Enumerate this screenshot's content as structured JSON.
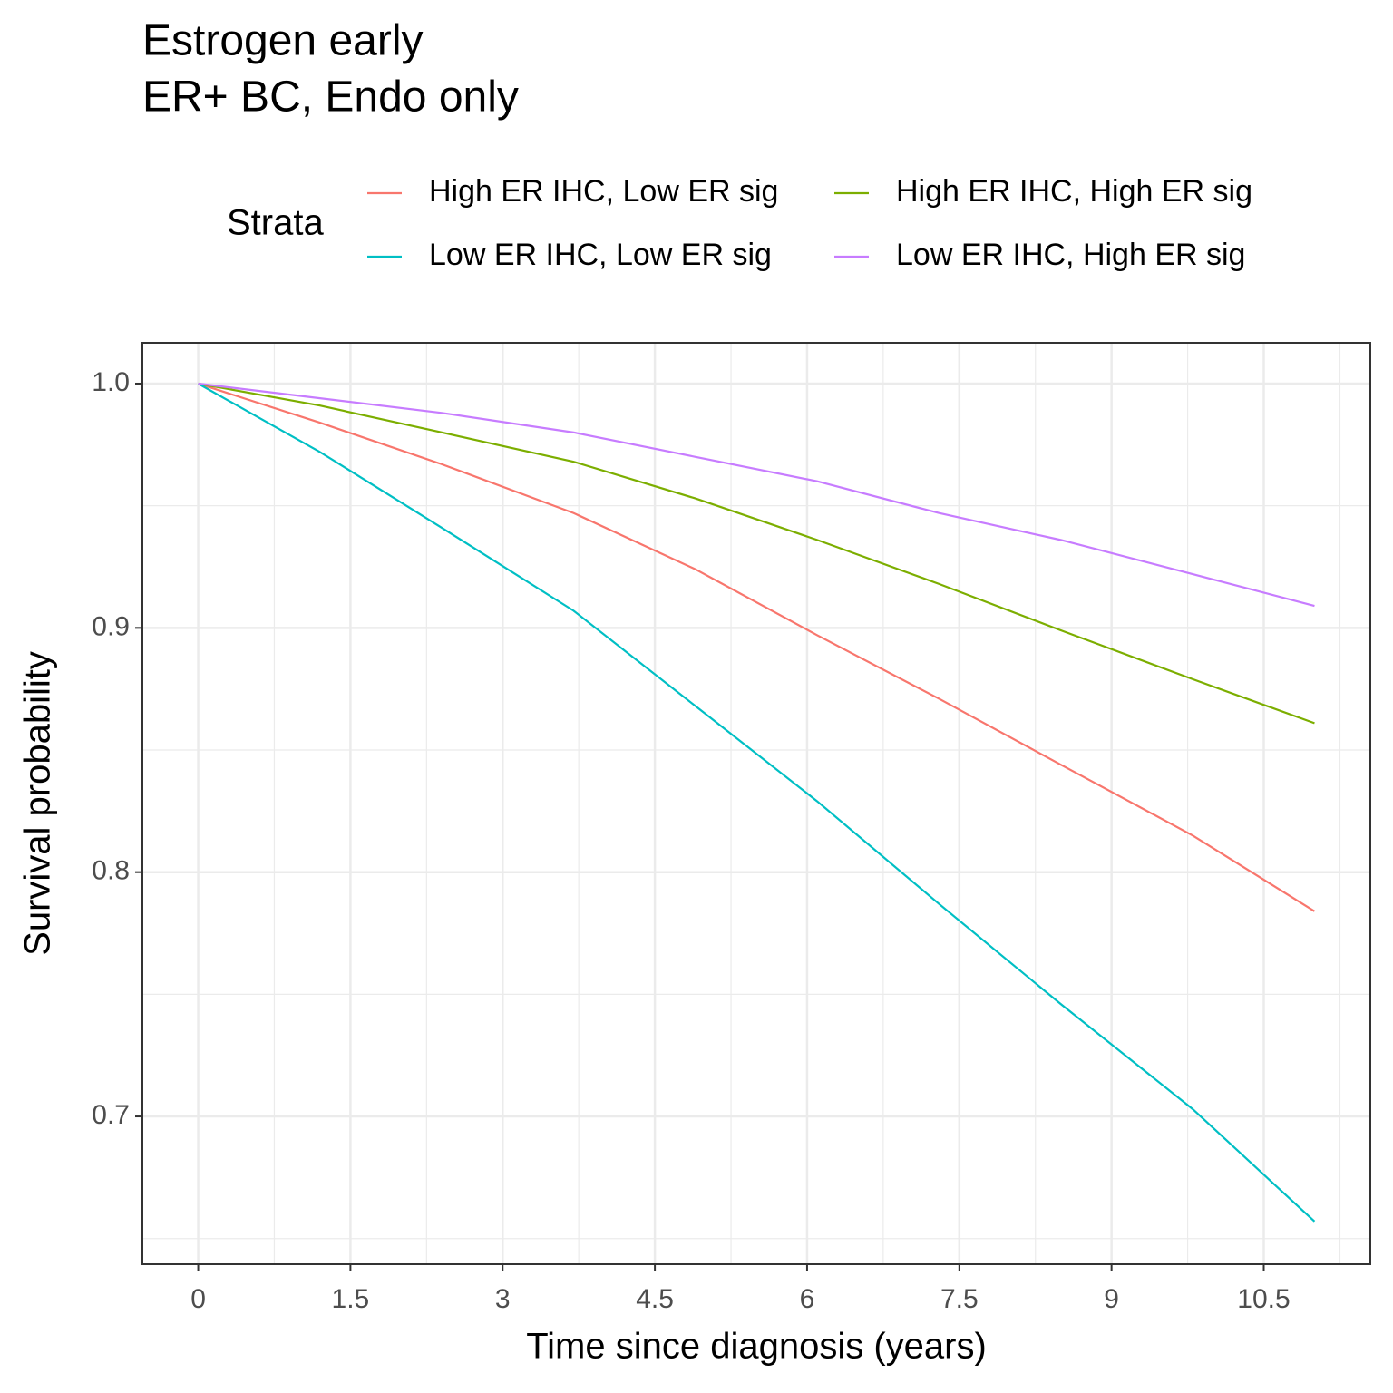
{
  "chart_data": {
    "type": "line",
    "title": "Estrogen early",
    "subtitle": "ER+ BC, Endo only",
    "x_label": "Time since diagnosis (years)",
    "y_label": "Survival probability",
    "legend_title": "Strata",
    "legend_position": "top",
    "grid": true,
    "x": [
      0,
      1.2,
      2.4,
      3.7,
      4.9,
      6.1,
      7.3,
      8.5,
      9.8,
      11
    ],
    "series": [
      {
        "name": "High ER IHC, Low ER sig",
        "color": "#f8766d",
        "values": [
          1.0,
          0.984,
          0.967,
          0.947,
          0.924,
          0.897,
          0.871,
          0.844,
          0.815,
          0.784
        ]
      },
      {
        "name": "High ER IHC, High ER sig",
        "color": "#7cae00",
        "values": [
          1.0,
          0.991,
          0.98,
          0.968,
          0.953,
          0.936,
          0.918,
          0.899,
          0.879,
          0.861
        ]
      },
      {
        "name": "Low ER IHC, Low ER sig",
        "color": "#00bfc4",
        "values": [
          1.0,
          0.972,
          0.941,
          0.907,
          0.868,
          0.829,
          0.787,
          0.746,
          0.703,
          0.657
        ]
      },
      {
        "name": "Low ER IHC, High ER sig",
        "color": "#c77cff",
        "values": [
          1.0,
          0.994,
          0.988,
          0.98,
          0.97,
          0.96,
          0.947,
          0.936,
          0.922,
          0.909
        ]
      }
    ],
    "xlim": [
      -0.55,
      11.55
    ],
    "ylim": [
      0.6395,
      1.0167
    ],
    "xticks": [
      0,
      1.5,
      3,
      4.5,
      6,
      7.5,
      9,
      10.5
    ],
    "yticks": [
      {
        "value": 1,
        "label": "1.0"
      },
      0.9,
      0.8,
      0.7
    ],
    "x_minor_ticks": [
      0.75,
      2.25,
      3.75,
      5.25,
      6.75,
      8.25,
      9.75,
      11.25
    ],
    "y_minor_ticks": [
      0.65,
      0.75,
      0.85,
      0.95
    ]
  }
}
